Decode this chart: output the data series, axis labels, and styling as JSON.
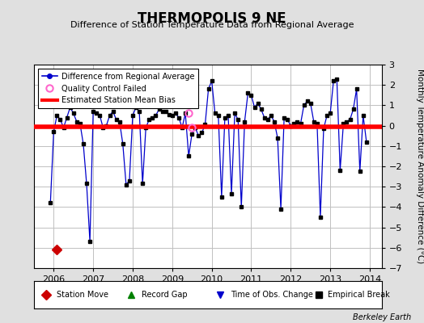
{
  "title": "THERMOPOLIS 9 NE",
  "subtitle": "Difference of Station Temperature Data from Regional Average",
  "ylabel": "Monthly Temperature Anomaly Difference (°C)",
  "xlabel_years": [
    2006,
    2007,
    2008,
    2009,
    2010,
    2011,
    2012,
    2013,
    2014
  ],
  "xlim": [
    2005.5,
    2014.3
  ],
  "ylim": [
    -7,
    3
  ],
  "yticks": [
    -7,
    -6,
    -5,
    -4,
    -3,
    -2,
    -1,
    0,
    1,
    2,
    3
  ],
  "bias_value": -0.05,
  "background_color": "#e0e0e0",
  "plot_bg_color": "#ffffff",
  "grid_color": "#c0c0c0",
  "line_color": "#0000cc",
  "bias_color": "#ff0000",
  "station_move_color": "#cc0000",
  "qc_fail_color": "#ff66cc",
  "watermark": "Berkeley Earth",
  "time_series": [
    [
      2005.917,
      -3.8
    ],
    [
      2006.0,
      -0.3
    ],
    [
      2006.083,
      0.5
    ],
    [
      2006.167,
      0.3
    ],
    [
      2006.25,
      -0.1
    ],
    [
      2006.333,
      0.4
    ],
    [
      2006.417,
      0.9
    ],
    [
      2006.5,
      0.6
    ],
    [
      2006.583,
      0.2
    ],
    [
      2006.667,
      0.1
    ],
    [
      2006.75,
      -0.9
    ],
    [
      2006.833,
      -2.85
    ],
    [
      2006.917,
      -5.7
    ],
    [
      2007.0,
      0.7
    ],
    [
      2007.083,
      0.6
    ],
    [
      2007.167,
      0.5
    ],
    [
      2007.25,
      -0.1
    ],
    [
      2007.333,
      0.0
    ],
    [
      2007.417,
      0.5
    ],
    [
      2007.5,
      0.7
    ],
    [
      2007.583,
      0.3
    ],
    [
      2007.667,
      0.2
    ],
    [
      2007.75,
      -0.9
    ],
    [
      2007.833,
      -2.9
    ],
    [
      2007.917,
      -2.7
    ],
    [
      2008.0,
      0.5
    ],
    [
      2008.083,
      0.9
    ],
    [
      2008.167,
      0.7
    ],
    [
      2008.25,
      -2.85
    ],
    [
      2008.333,
      -0.1
    ],
    [
      2008.417,
      0.3
    ],
    [
      2008.5,
      0.4
    ],
    [
      2008.583,
      0.5
    ],
    [
      2008.667,
      0.8
    ],
    [
      2008.75,
      0.7
    ],
    [
      2008.833,
      0.7
    ],
    [
      2008.917,
      0.55
    ],
    [
      2009.0,
      0.5
    ],
    [
      2009.083,
      0.6
    ],
    [
      2009.167,
      0.4
    ],
    [
      2009.25,
      -0.1
    ],
    [
      2009.333,
      0.6
    ],
    [
      2009.417,
      -1.5
    ],
    [
      2009.5,
      -0.4
    ],
    [
      2009.583,
      -0.1
    ],
    [
      2009.667,
      -0.5
    ],
    [
      2009.75,
      -0.35
    ],
    [
      2009.833,
      0.05
    ],
    [
      2009.917,
      1.8
    ],
    [
      2010.0,
      2.2
    ],
    [
      2010.083,
      0.6
    ],
    [
      2010.167,
      0.5
    ],
    [
      2010.25,
      -3.5
    ],
    [
      2010.333,
      0.4
    ],
    [
      2010.417,
      0.5
    ],
    [
      2010.5,
      -3.35
    ],
    [
      2010.583,
      0.6
    ],
    [
      2010.667,
      0.3
    ],
    [
      2010.75,
      -4.0
    ],
    [
      2010.833,
      0.2
    ],
    [
      2010.917,
      1.6
    ],
    [
      2011.0,
      1.5
    ],
    [
      2011.083,
      0.9
    ],
    [
      2011.167,
      1.1
    ],
    [
      2011.25,
      0.8
    ],
    [
      2011.333,
      0.4
    ],
    [
      2011.417,
      0.3
    ],
    [
      2011.5,
      0.5
    ],
    [
      2011.583,
      0.2
    ],
    [
      2011.667,
      -0.6
    ],
    [
      2011.75,
      -4.1
    ],
    [
      2011.833,
      0.4
    ],
    [
      2011.917,
      0.3
    ],
    [
      2012.0,
      0.0
    ],
    [
      2012.083,
      0.1
    ],
    [
      2012.167,
      0.2
    ],
    [
      2012.25,
      0.1
    ],
    [
      2012.333,
      1.0
    ],
    [
      2012.417,
      1.2
    ],
    [
      2012.5,
      1.1
    ],
    [
      2012.583,
      0.2
    ],
    [
      2012.667,
      0.1
    ],
    [
      2012.75,
      -4.5
    ],
    [
      2012.833,
      -0.15
    ],
    [
      2012.917,
      0.5
    ],
    [
      2013.0,
      0.6
    ],
    [
      2013.083,
      2.2
    ],
    [
      2013.167,
      2.3
    ],
    [
      2013.25,
      -2.2
    ],
    [
      2013.333,
      0.1
    ],
    [
      2013.417,
      0.2
    ],
    [
      2013.5,
      0.3
    ],
    [
      2013.583,
      0.8
    ],
    [
      2013.667,
      1.8
    ],
    [
      2013.75,
      -2.25
    ],
    [
      2013.833,
      0.5
    ],
    [
      2013.917,
      -0.8
    ]
  ],
  "qc_fail_points": [
    [
      2009.417,
      0.6
    ],
    [
      2009.5,
      -0.1
    ]
  ],
  "station_move_points": [
    [
      2006.083,
      -6.1
    ]
  ]
}
